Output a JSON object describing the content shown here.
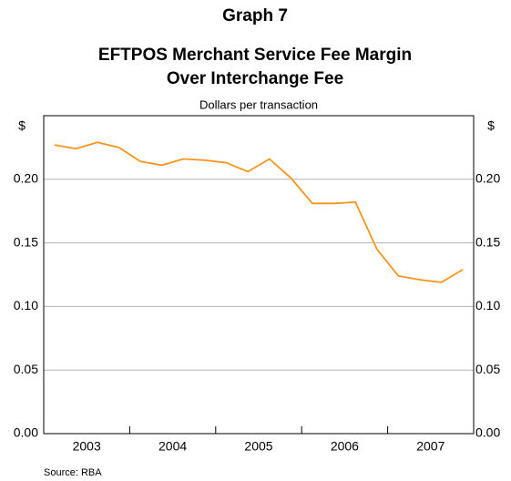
{
  "chart_data": {
    "type": "line",
    "heading": "Graph 7",
    "title": [
      "EFTPOS Merchant Service Fee Margin",
      "Over Interchange Fee"
    ],
    "subtitle": "Dollars per transaction",
    "y_label": "$",
    "y2_label": "$",
    "source": "Source: RBA",
    "categories": [
      "2003",
      null,
      null,
      null,
      "2004",
      null,
      null,
      null,
      "2005",
      null,
      null,
      null,
      "2006",
      null,
      null,
      null,
      "2007",
      null,
      null,
      null
    ],
    "series": [
      {
        "color": "#f7941d",
        "values": [
          0.227,
          0.224,
          0.229,
          0.225,
          0.214,
          0.211,
          0.216,
          0.215,
          0.213,
          0.206,
          0.216,
          0.201,
          0.181,
          0.181,
          0.182,
          0.145,
          0.124,
          0.121,
          0.119,
          0.129
        ]
      }
    ],
    "ylim": [
      0,
      0.25
    ],
    "yticks": [
      {
        "value": 0,
        "label": "0.00"
      },
      0.05,
      {
        "value": 0.1,
        "label": "0.10"
      },
      0.15,
      {
        "value": 0.2,
        "label": "0.20"
      }
    ],
    "grid": true
  }
}
